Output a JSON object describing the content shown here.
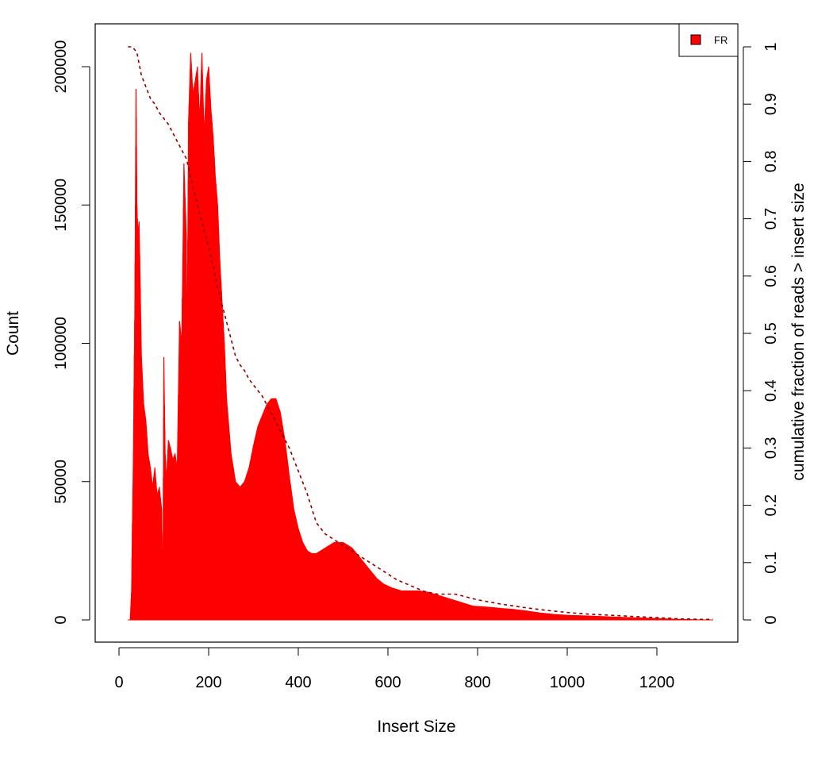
{
  "chart_data": {
    "type": "area",
    "title": "",
    "xlabel": "Insert Size",
    "ylabel": "Count",
    "ylabel_right": "cumulative fraction of reads > insert size",
    "xlim": [
      0,
      1350
    ],
    "ylim": [
      0,
      208000
    ],
    "ylim_right": [
      0,
      1
    ],
    "x_ticks": [
      0,
      200,
      400,
      600,
      800,
      1000,
      1200
    ],
    "y_ticks": [
      0,
      50000,
      100000,
      150000,
      200000
    ],
    "y_right_ticks": [
      0,
      0.1,
      0.2,
      0.3,
      0.4,
      0.5,
      0.6,
      0.7,
      0.8,
      0.9,
      1
    ],
    "grid": false,
    "legend": {
      "position": "top-right",
      "entries": [
        {
          "label": "FR",
          "color": "#ff0000"
        }
      ]
    },
    "colors": {
      "fill": "#ff0000",
      "cumulative_line": "#8b0000"
    },
    "series": [
      {
        "name": "FR",
        "role": "histogram",
        "x": [
          20,
          25,
          28,
          32,
          35,
          38,
          40,
          42,
          45,
          50,
          55,
          60,
          65,
          70,
          75,
          80,
          85,
          90,
          95,
          98,
          100,
          103,
          106,
          110,
          115,
          120,
          125,
          130,
          135,
          140,
          145,
          150,
          152,
          155,
          160,
          165,
          170,
          175,
          180,
          185,
          190,
          195,
          200,
          205,
          210,
          215,
          220,
          225,
          230,
          235,
          240,
          250,
          260,
          270,
          280,
          290,
          300,
          310,
          320,
          330,
          340,
          350,
          360,
          370,
          380,
          390,
          400,
          410,
          420,
          430,
          440,
          460,
          480,
          500,
          520,
          540,
          560,
          575,
          590,
          610,
          630,
          650,
          670,
          690,
          710,
          730,
          750,
          770,
          790,
          810,
          830,
          850,
          880,
          910,
          940,
          970,
          1000,
          1050,
          1100,
          1150,
          1200,
          1250,
          1300,
          1325
        ],
        "values": [
          0,
          0,
          10000,
          60000,
          108000,
          192000,
          150000,
          140000,
          144000,
          95000,
          78000,
          72000,
          60000,
          55000,
          48000,
          55000,
          45000,
          48000,
          40000,
          8000,
          95000,
          60000,
          50000,
          65000,
          62000,
          58000,
          60000,
          55000,
          108000,
          100000,
          165000,
          140000,
          95000,
          180000,
          205000,
          190000,
          195000,
          200000,
          180000,
          205000,
          175000,
          195000,
          200000,
          185000,
          175000,
          160000,
          150000,
          130000,
          115000,
          100000,
          80000,
          60000,
          50000,
          48000,
          50000,
          55000,
          63000,
          70000,
          74000,
          78000,
          80000,
          80000,
          75000,
          65000,
          52000,
          40000,
          33000,
          28000,
          25000,
          24000,
          24000,
          26000,
          28000,
          28000,
          26000,
          22000,
          18000,
          15000,
          13000,
          11500,
          10500,
          10500,
          10500,
          10000,
          9000,
          8000,
          7000,
          6000,
          5000,
          4800,
          4500,
          4200,
          3800,
          3200,
          2500,
          2000,
          1700,
          1400,
          1100,
          800,
          500,
          200,
          0,
          0
        ]
      },
      {
        "name": "",
        "role": "cumulative",
        "axis": "right",
        "style": "dashed",
        "x": [
          20,
          30,
          40,
          45,
          50,
          60,
          70,
          80,
          90,
          100,
          110,
          120,
          130,
          140,
          150,
          155,
          160,
          170,
          180,
          190,
          200,
          210,
          220,
          230,
          240,
          250,
          260,
          270,
          280,
          290,
          300,
          320,
          340,
          360,
          380,
          400,
          420,
          440,
          460,
          480,
          500,
          530,
          560,
          590,
          620,
          650,
          680,
          710,
          750,
          800,
          850,
          900,
          950,
          1000,
          1050,
          1100,
          1150,
          1200,
          1250,
          1300,
          1325
        ],
        "values": [
          1.0,
          1.0,
          0.99,
          0.97,
          0.95,
          0.93,
          0.91,
          0.9,
          0.885,
          0.875,
          0.865,
          0.85,
          0.835,
          0.82,
          0.805,
          0.79,
          0.77,
          0.74,
          0.71,
          0.68,
          0.65,
          0.62,
          0.58,
          0.55,
          0.52,
          0.49,
          0.46,
          0.445,
          0.435,
          0.42,
          0.41,
          0.39,
          0.36,
          0.33,
          0.3,
          0.26,
          0.22,
          0.17,
          0.15,
          0.14,
          0.13,
          0.115,
          0.1,
          0.085,
          0.07,
          0.06,
          0.05,
          0.045,
          0.045,
          0.035,
          0.028,
          0.022,
          0.017,
          0.013,
          0.01,
          0.008,
          0.006,
          0.004,
          0.002,
          0.001,
          0.001
        ]
      }
    ]
  }
}
